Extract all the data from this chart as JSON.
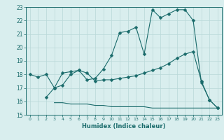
{
  "line1_x": [
    0,
    1,
    2,
    3,
    4,
    5,
    6,
    7,
    8,
    9,
    10,
    11,
    12,
    13,
    14,
    15,
    16,
    17,
    18,
    19,
    20,
    21,
    22,
    23
  ],
  "line1_y": [
    18.0,
    17.8,
    18.0,
    17.0,
    18.1,
    18.2,
    18.3,
    17.6,
    17.7,
    18.4,
    19.4,
    21.1,
    21.2,
    21.5,
    19.5,
    22.8,
    22.2,
    22.5,
    22.8,
    22.8,
    22.0,
    17.4,
    16.1,
    15.5
  ],
  "line2_x": [
    2,
    3,
    4,
    5,
    6,
    7,
    8,
    9,
    10,
    11,
    12,
    13,
    14,
    15,
    16,
    17,
    18,
    19,
    20,
    21,
    22,
    23
  ],
  "line2_y": [
    16.3,
    17.0,
    17.2,
    18.0,
    18.3,
    18.1,
    17.5,
    17.6,
    17.6,
    17.7,
    17.8,
    17.9,
    18.1,
    18.3,
    18.5,
    18.8,
    19.2,
    19.5,
    19.7,
    17.5,
    16.1,
    15.5
  ],
  "line3_x": [
    3,
    4,
    5,
    6,
    7,
    8,
    9,
    10,
    11,
    12,
    13,
    14,
    15,
    16,
    17,
    18,
    19,
    20,
    21,
    22,
    23
  ],
  "line3_y": [
    15.9,
    15.9,
    15.8,
    15.8,
    15.8,
    15.7,
    15.7,
    15.6,
    15.6,
    15.6,
    15.6,
    15.6,
    15.5,
    15.5,
    15.5,
    15.5,
    15.5,
    15.5,
    15.5,
    15.5,
    15.5
  ],
  "line_color": "#1a6b6b",
  "bg_color": "#d9eeee",
  "grid_color": "#b8d8d8",
  "xlabel": "Humidex (Indice chaleur)",
  "xlim": [
    -0.5,
    23.5
  ],
  "ylim": [
    15,
    23
  ],
  "xticks": [
    0,
    1,
    2,
    3,
    4,
    5,
    6,
    7,
    8,
    9,
    10,
    11,
    12,
    13,
    14,
    15,
    16,
    17,
    18,
    19,
    20,
    21,
    22,
    23
  ],
  "yticks": [
    15,
    16,
    17,
    18,
    19,
    20,
    21,
    22,
    23
  ],
  "markersize": 2.5
}
